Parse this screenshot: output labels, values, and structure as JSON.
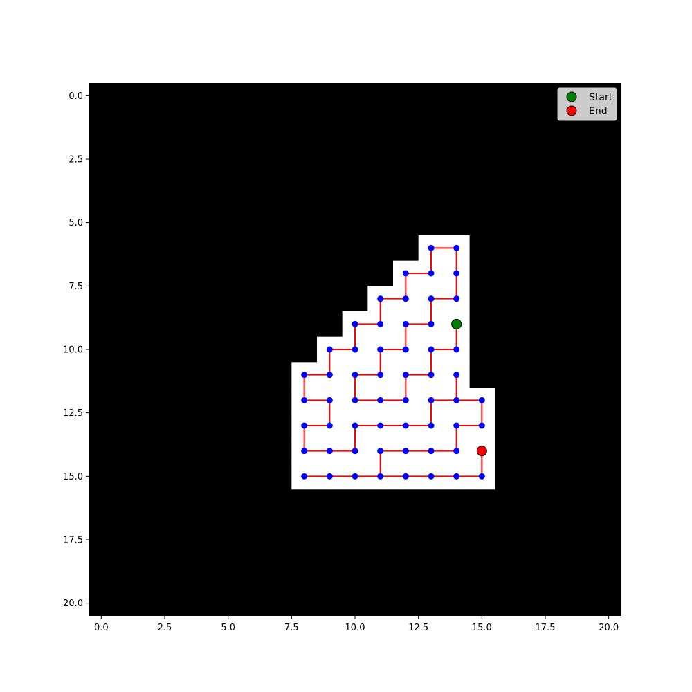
{
  "chart_data": {
    "type": "scatter",
    "title": "",
    "xlabel": "",
    "ylabel": "",
    "xlim": [
      -0.5,
      20.5
    ],
    "ylim": [
      20.5,
      -0.5
    ],
    "y_inverted": true,
    "x_ticks": [
      "0.0",
      "2.5",
      "5.0",
      "7.5",
      "10.0",
      "12.5",
      "15.0",
      "17.5",
      "20.0"
    ],
    "y_ticks": [
      "0.0",
      "2.5",
      "5.0",
      "7.5",
      "10.0",
      "12.5",
      "15.0",
      "17.5",
      "20.0"
    ],
    "background_color": "#000000",
    "open_cell_color": "#ffffff",
    "node_color": "#0000ff",
    "path_color": "#ff0000",
    "grid": false,
    "legend_position": "top-right",
    "open_region_rows": [
      {
        "row": 6,
        "cols": [
          13,
          14
        ]
      },
      {
        "row": 7,
        "cols": [
          12,
          14
        ]
      },
      {
        "row": 8,
        "cols": [
          11,
          14
        ]
      },
      {
        "row": 9,
        "cols": [
          10,
          14
        ]
      },
      {
        "row": 10,
        "cols": [
          9,
          14
        ]
      },
      {
        "row": 11,
        "cols": [
          8,
          14
        ]
      },
      {
        "row": 12,
        "cols": [
          8,
          15
        ]
      },
      {
        "row": 13,
        "cols": [
          8,
          15
        ]
      },
      {
        "row": 14,
        "cols": [
          8,
          15
        ]
      },
      {
        "row": 15,
        "cols": [
          8,
          15
        ]
      }
    ],
    "edges": [
      [
        [
          13,
          6
        ],
        [
          14,
          6
        ]
      ],
      [
        [
          13,
          6
        ],
        [
          13,
          7
        ]
      ],
      [
        [
          14,
          6
        ],
        [
          14,
          7
        ]
      ],
      [
        [
          14,
          7
        ],
        [
          14,
          8
        ]
      ],
      [
        [
          12,
          7
        ],
        [
          13,
          7
        ]
      ],
      [
        [
          12,
          7
        ],
        [
          12,
          8
        ]
      ],
      [
        [
          13,
          8
        ],
        [
          14,
          8
        ]
      ],
      [
        [
          13,
          8
        ],
        [
          13,
          9
        ]
      ],
      [
        [
          11,
          8
        ],
        [
          12,
          8
        ]
      ],
      [
        [
          11,
          8
        ],
        [
          11,
          9
        ]
      ],
      [
        [
          10,
          9
        ],
        [
          11,
          9
        ]
      ],
      [
        [
          10,
          9
        ],
        [
          10,
          10
        ]
      ],
      [
        [
          12,
          9
        ],
        [
          13,
          9
        ]
      ],
      [
        [
          12,
          9
        ],
        [
          12,
          10
        ]
      ],
      [
        [
          14,
          9
        ],
        [
          14,
          10
        ]
      ],
      [
        [
          13,
          10
        ],
        [
          14,
          10
        ]
      ],
      [
        [
          13,
          10
        ],
        [
          13,
          11
        ]
      ],
      [
        [
          9,
          10
        ],
        [
          10,
          10
        ]
      ],
      [
        [
          9,
          10
        ],
        [
          9,
          11
        ]
      ],
      [
        [
          8,
          11
        ],
        [
          9,
          11
        ]
      ],
      [
        [
          8,
          11
        ],
        [
          8,
          12
        ]
      ],
      [
        [
          11,
          10
        ],
        [
          12,
          10
        ]
      ],
      [
        [
          11,
          10
        ],
        [
          11,
          11
        ]
      ],
      [
        [
          10,
          11
        ],
        [
          11,
          11
        ]
      ],
      [
        [
          10,
          11
        ],
        [
          10,
          12
        ]
      ],
      [
        [
          12,
          11
        ],
        [
          13,
          11
        ]
      ],
      [
        [
          12,
          11
        ],
        [
          12,
          12
        ]
      ],
      [
        [
          10,
          12
        ],
        [
          11,
          12
        ]
      ],
      [
        [
          11,
          12
        ],
        [
          12,
          12
        ]
      ],
      [
        [
          14,
          11
        ],
        [
          14,
          12
        ]
      ],
      [
        [
          13,
          12
        ],
        [
          14,
          12
        ]
      ],
      [
        [
          14,
          12
        ],
        [
          15,
          12
        ]
      ],
      [
        [
          15,
          12
        ],
        [
          15,
          13
        ]
      ],
      [
        [
          13,
          12
        ],
        [
          13,
          13
        ]
      ],
      [
        [
          14,
          13
        ],
        [
          15,
          13
        ]
      ],
      [
        [
          14,
          13
        ],
        [
          14,
          14
        ]
      ],
      [
        [
          8,
          12
        ],
        [
          9,
          12
        ]
      ],
      [
        [
          9,
          12
        ],
        [
          9,
          13
        ]
      ],
      [
        [
          8,
          13
        ],
        [
          9,
          13
        ]
      ],
      [
        [
          8,
          13
        ],
        [
          8,
          14
        ]
      ],
      [
        [
          8,
          14
        ],
        [
          9,
          14
        ]
      ],
      [
        [
          9,
          14
        ],
        [
          10,
          14
        ]
      ],
      [
        [
          10,
          13
        ],
        [
          10,
          14
        ]
      ],
      [
        [
          10,
          13
        ],
        [
          11,
          13
        ]
      ],
      [
        [
          11,
          13
        ],
        [
          12,
          13
        ]
      ],
      [
        [
          12,
          13
        ],
        [
          13,
          13
        ]
      ],
      [
        [
          11,
          14
        ],
        [
          12,
          14
        ]
      ],
      [
        [
          12,
          14
        ],
        [
          13,
          14
        ]
      ],
      [
        [
          13,
          14
        ],
        [
          14,
          14
        ]
      ],
      [
        [
          11,
          14
        ],
        [
          11,
          15
        ]
      ],
      [
        [
          8,
          15
        ],
        [
          9,
          15
        ]
      ],
      [
        [
          9,
          15
        ],
        [
          10,
          15
        ]
      ],
      [
        [
          10,
          15
        ],
        [
          11,
          15
        ]
      ],
      [
        [
          11,
          15
        ],
        [
          12,
          15
        ]
      ],
      [
        [
          12,
          15
        ],
        [
          13,
          15
        ]
      ],
      [
        [
          13,
          15
        ],
        [
          14,
          15
        ]
      ],
      [
        [
          14,
          15
        ],
        [
          15,
          15
        ]
      ],
      [
        [
          15,
          14
        ],
        [
          15,
          15
        ]
      ]
    ],
    "start": {
      "label": "Start",
      "x": 14,
      "y": 9,
      "color": "#008000"
    },
    "end": {
      "label": "End",
      "x": 15,
      "y": 14,
      "color": "#ff0000"
    }
  }
}
